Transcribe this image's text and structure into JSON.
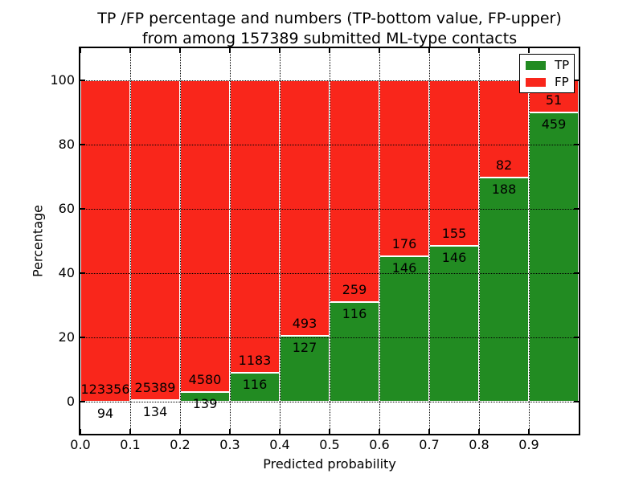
{
  "chart_data": {
    "type": "bar",
    "stacked": true,
    "normalized": "each bar totals 100%",
    "title_lines": [
      "TP /FP percentage and numbers (TP-bottom value, FP-upper)",
      "from among 157389 submitted ML-type contacts"
    ],
    "total_contacts": 157389,
    "xlabel": "Predicted probability",
    "ylabel": "Percentage",
    "bin_edges": [
      0.0,
      0.1,
      0.2,
      0.3,
      0.4,
      0.5,
      0.6,
      0.7,
      0.8,
      0.9,
      1.0
    ],
    "xtick_labels": [
      "0.0",
      "0.1",
      "0.2",
      "0.3",
      "0.4",
      "0.5",
      "0.6",
      "0.7",
      "0.8",
      "0.9"
    ],
    "ytick_values": [
      0,
      20,
      40,
      60,
      80,
      100
    ],
    "ytick_labels": [
      "0",
      "20",
      "40",
      "60",
      "80",
      "100"
    ],
    "xlim": [
      0.0,
      1.0
    ],
    "ylim": [
      -10,
      110
    ],
    "grid": "dotted",
    "legend_position": "upper right",
    "series": [
      {
        "name": "TP",
        "color": "#228b22",
        "counts": [
          94,
          134,
          139,
          116,
          127,
          116,
          146,
          146,
          188,
          459
        ],
        "percent": [
          0.08,
          0.53,
          2.95,
          8.93,
          20.48,
          30.93,
          45.34,
          48.5,
          69.63,
          90.0
        ]
      },
      {
        "name": "FP",
        "color": "#f9261b",
        "counts": [
          123356,
          25389,
          4580,
          1183,
          493,
          259,
          176,
          155,
          82,
          51
        ],
        "percent": [
          99.92,
          99.47,
          97.05,
          91.07,
          79.52,
          69.07,
          54.66,
          51.5,
          30.37,
          10.0
        ]
      }
    ],
    "colors": {
      "grid": "#000000",
      "spine": "#000000",
      "bar_edge": "#ffffff",
      "text": "#000000",
      "background": "#ffffff"
    }
  }
}
